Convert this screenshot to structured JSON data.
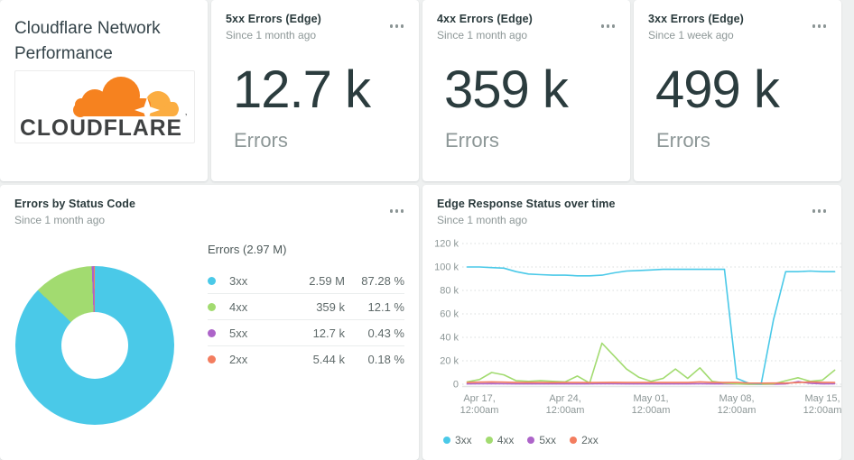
{
  "header_card": {
    "title": "Cloudflare Network Performance",
    "logo_word": "CLOUDFLARE",
    "logo_mark": "’"
  },
  "kpis": [
    {
      "title": "5xx Errors (Edge)",
      "subtitle": "Since 1 month ago",
      "value": "12.7 k",
      "label": "Errors"
    },
    {
      "title": "4xx Errors (Edge)",
      "subtitle": "Since 1 month ago",
      "value": "359 k",
      "label": "Errors"
    },
    {
      "title": "3xx Errors (Edge)",
      "subtitle": "Since 1 week ago",
      "value": "499 k",
      "label": "Errors"
    }
  ],
  "pie_card": {
    "title": "Errors by Status Code",
    "subtitle": "Since 1 month ago"
  },
  "line_card": {
    "title": "Edge Response Status over time",
    "subtitle": "Since 1 month ago"
  },
  "colors": {
    "blue": "#4ac9e8",
    "green": "#a2db70",
    "purple": "#ad64c9",
    "orange": "#f37d5f"
  },
  "chart_data": [
    {
      "type": "pie",
      "title": "Errors by Status Code",
      "legend_title": "Errors (2.97 M)",
      "slices": [
        {
          "label": "3xx",
          "value": "2.59 M",
          "pct": 87.28,
          "pct_label": "87.28 %",
          "color": "#4ac9e8"
        },
        {
          "label": "4xx",
          "value": "359 k",
          "pct": 12.1,
          "pct_label": "12.1 %",
          "color": "#a2db70"
        },
        {
          "label": "5xx",
          "value": "12.7 k",
          "pct": 0.43,
          "pct_label": "0.43 %",
          "color": "#ad64c9"
        },
        {
          "label": "2xx",
          "value": "5.44 k",
          "pct": 0.18,
          "pct_label": "0.18 %",
          "color": "#f37d5f"
        }
      ]
    },
    {
      "type": "line",
      "title": "Edge Response Status over time",
      "x": [
        "Apr 16",
        "Apr 17",
        "Apr 18",
        "Apr 19",
        "Apr 20",
        "Apr 21",
        "Apr 22",
        "Apr 23",
        "Apr 24",
        "Apr 25",
        "Apr 26",
        "Apr 27",
        "Apr 28",
        "Apr 29",
        "Apr 30",
        "May 01",
        "May 02",
        "May 03",
        "May 04",
        "May 05",
        "May 06",
        "May 07",
        "May 08",
        "May 09",
        "May 10",
        "May 11",
        "May 12",
        "May 13",
        "May 14",
        "May 15",
        "May 16"
      ],
      "xticks": [
        {
          "day": "Apr 17,",
          "time": "12:00am",
          "index": 1
        },
        {
          "day": "Apr 24,",
          "time": "12:00am",
          "index": 8
        },
        {
          "day": "May 01,",
          "time": "12:00am",
          "index": 15
        },
        {
          "day": "May 08,",
          "time": "12:00am",
          "index": 22
        },
        {
          "day": "May 15,",
          "time": "12:00am",
          "index": 29
        }
      ],
      "ylim": [
        0,
        120000
      ],
      "yticks": [
        {
          "value": 0,
          "label": "0"
        },
        {
          "value": 20000,
          "label": "20 k"
        },
        {
          "value": 40000,
          "label": "40 k"
        },
        {
          "value": 60000,
          "label": "60 k"
        },
        {
          "value": 80000,
          "label": "80 k"
        },
        {
          "value": 100000,
          "label": "100 k"
        },
        {
          "value": 120000,
          "label": "120 k"
        }
      ],
      "grid": "dotted",
      "legend_position": "bottom-left",
      "draw_order": [
        2,
        1,
        0,
        3
      ],
      "series": [
        {
          "name": "3xx",
          "color": "#4ac9e8",
          "values": [
            100000,
            100000,
            99500,
            99000,
            96000,
            94000,
            93500,
            93000,
            93000,
            92500,
            92500,
            93000,
            95000,
            96500,
            97000,
            97500,
            98000,
            98000,
            98000,
            98000,
            98000,
            98000,
            5000,
            800,
            300,
            55000,
            96000,
            96000,
            96500,
            96000,
            96000
          ]
        },
        {
          "name": "4xx",
          "color": "#a2db70",
          "values": [
            2000,
            4000,
            10000,
            8000,
            3000,
            2500,
            3000,
            2500,
            2000,
            7000,
            1000,
            35000,
            24000,
            13000,
            6000,
            2500,
            5000,
            13000,
            5000,
            14000,
            2500,
            1000,
            300,
            0,
            0,
            300,
            3000,
            5500,
            2500,
            3500,
            12000
          ]
        },
        {
          "name": "5xx",
          "color": "#ad64c9",
          "values": [
            300,
            400,
            500,
            400,
            300,
            300,
            300,
            300,
            300,
            300,
            300,
            500,
            400,
            300,
            300,
            300,
            300,
            300,
            300,
            400,
            300,
            300,
            200,
            100,
            100,
            100,
            300,
            2200,
            800,
            300,
            400
          ]
        },
        {
          "name": "2xx",
          "color": "#f37d5f",
          "values": [
            1500,
            1800,
            2000,
            1800,
            1500,
            1500,
            1500,
            1400,
            1500,
            1500,
            1400,
            1500,
            1600,
            1500,
            1500,
            1500,
            1500,
            1500,
            1500,
            2000,
            1600,
            1500,
            1500,
            1000,
            900,
            1000,
            1000,
            1400,
            2000,
            1600,
            1500
          ]
        }
      ]
    }
  ]
}
